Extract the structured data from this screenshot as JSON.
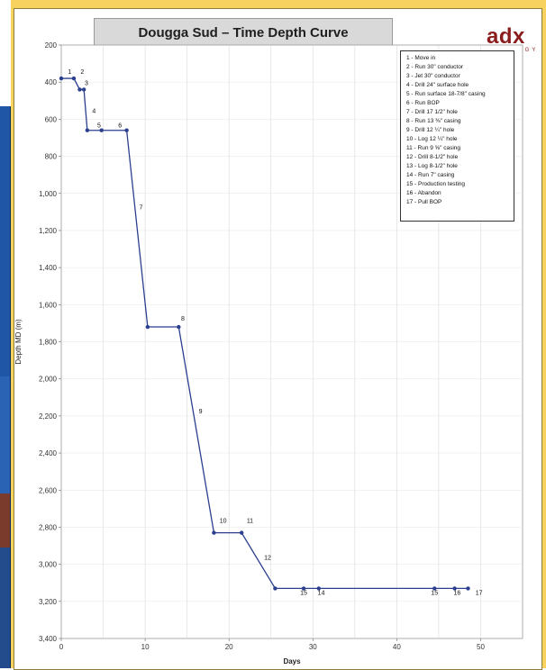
{
  "chart_data": {
    "type": "line",
    "title": "Dougga Sud – Time Depth Curve",
    "xlabel": "Days",
    "ylabel": "Depth MD (m)",
    "xlim": [
      0,
      55
    ],
    "ylim": [
      200,
      3400
    ],
    "y_inverted": true,
    "x_ticks": [
      "0",
      "10",
      "20",
      "30",
      "40",
      "50"
    ],
    "y_ticks": [
      "200",
      "400",
      "600",
      "800",
      "1,000",
      "1,200",
      "1,400",
      "1,600",
      "1,800",
      "2,000",
      "2,200",
      "2,400",
      "2,600",
      "2,800",
      "3,000",
      "3,200",
      "3,400"
    ],
    "grid": true,
    "line_color": "#2b3f8f",
    "points": [
      {
        "x": 0,
        "y": 380,
        "label": "1"
      },
      {
        "x": 1.5,
        "y": 380,
        "label": "2"
      },
      {
        "x": 2.2,
        "y": 440,
        "label": ""
      },
      {
        "x": 2.7,
        "y": 440,
        "label": "3"
      },
      {
        "x": 3.1,
        "y": 660,
        "label": "4"
      },
      {
        "x": 4.8,
        "y": 660,
        "label": "5"
      },
      {
        "x": 7.8,
        "y": 660,
        "label": "6"
      },
      {
        "x": 10.3,
        "y": 1720,
        "label": "7"
      },
      {
        "x": 14,
        "y": 1720,
        "label": "8"
      },
      {
        "x": 18.2,
        "y": 2830,
        "label": "9"
      },
      {
        "x": 21.5,
        "y": 2830,
        "label": "11"
      },
      {
        "x": 25.5,
        "y": 3130,
        "label": "12"
      },
      {
        "x": 28.9,
        "y": 3130,
        "label": "15"
      },
      {
        "x": 30.7,
        "y": 3130,
        "label": "14"
      },
      {
        "x": 44.5,
        "y": 3130,
        "label": "15"
      },
      {
        "x": 46.9,
        "y": 3130,
        "label": "16"
      },
      {
        "x": 48.5,
        "y": 3130,
        "label": "17"
      }
    ],
    "annotations": [
      {
        "text": "1",
        "x": 1,
        "y": 370
      },
      {
        "text": "2",
        "x": 2.5,
        "y": 370
      },
      {
        "text": "3",
        "x": 3,
        "y": 430
      },
      {
        "text": "4",
        "x": 3.9,
        "y": 580
      },
      {
        "text": "5",
        "x": 4.5,
        "y": 660
      },
      {
        "text": "6",
        "x": 7,
        "y": 660
      },
      {
        "text": "7",
        "x": 9.5,
        "y": 1100
      },
      {
        "text": "8",
        "x": 14.5,
        "y": 1700
      },
      {
        "text": "9",
        "x": 16.6,
        "y": 2200
      },
      {
        "text": "10",
        "x": 19.3,
        "y": 2790
      },
      {
        "text": "11",
        "x": 22.5,
        "y": 2790
      },
      {
        "text": "12",
        "x": 24.6,
        "y": 2990
      },
      {
        "text": "15",
        "x": 28.9,
        "y": 3180
      },
      {
        "text": "14",
        "x": 31,
        "y": 3180
      },
      {
        "text": "15",
        "x": 44.5,
        "y": 3180
      },
      {
        "text": "16",
        "x": 47.2,
        "y": 3180
      },
      {
        "text": "17",
        "x": 49.8,
        "y": 3180
      }
    ],
    "legend": {
      "placement": "top-right",
      "items": [
        "1 - Move in",
        "2 - Run 30\" conductor",
        "3 - Jet 30\" conductor",
        "4 - Drill 24\" surface hole",
        "5 - Run surface 18-7/8\" casing",
        "6 - Run BOP",
        "7 - Drill 17 1/2\" hole",
        "8 - Run 13 ⅜\" casing",
        "9 - Drill 12 ¼\" hole",
        "10 - Log 12 ¼\" hole",
        "11 - Run 9 ⅝\" casing",
        "12 - Drill 8-1/2\" hole",
        "13 - Log 8-1/2\" hole",
        "14 - Run 7\" casing",
        "15 - Production testing",
        "16 - Abandon",
        "17 - Pull BOP"
      ]
    }
  },
  "logo": {
    "main": "adx",
    "sub": "ENERGY"
  },
  "colors": {
    "frame": "#f7d25e",
    "title_bg": "#d9d9d9",
    "logo": "#8a1d1d",
    "line": "#2b3f8f"
  }
}
